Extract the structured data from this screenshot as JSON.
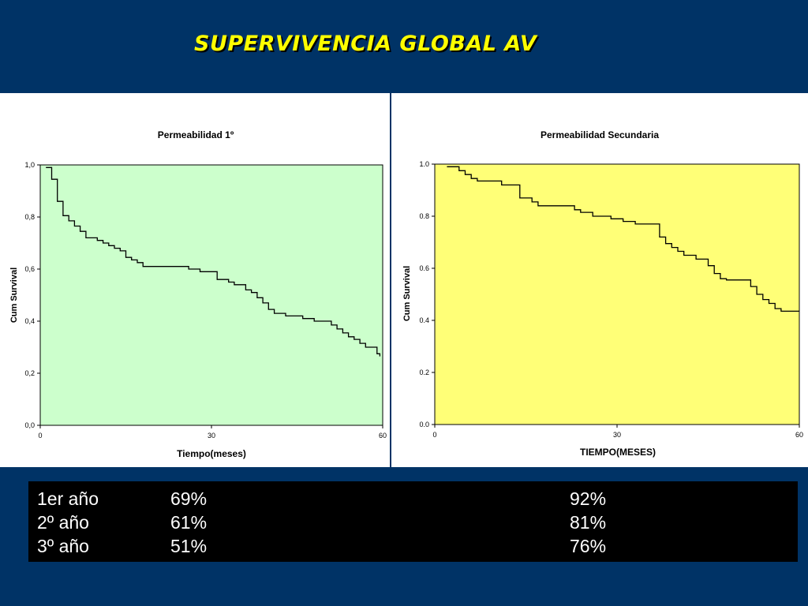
{
  "slide": {
    "title": "SUPERVIVENCIA GLOBAL AV",
    "background": "#003366",
    "title_color": "#FFFF00"
  },
  "chart_data": [
    {
      "type": "line",
      "step": true,
      "title": "Permeabilidad 1º",
      "xlabel": "Tiempo(meses)",
      "ylabel": "Cum Survival",
      "xlim": [
        0,
        60
      ],
      "ylim": [
        0,
        1
      ],
      "x_ticks": [
        "0",
        "30",
        "60"
      ],
      "y_ticks": [
        "0,0",
        "0,2",
        "0,4",
        "0,6",
        "0,8",
        "1,0"
      ],
      "plot_background": "#CCFFCC",
      "grid": false,
      "series": [
        {
          "x": [
            1,
            2,
            3,
            4,
            5,
            6,
            7,
            8,
            10,
            11,
            12,
            13,
            14,
            15,
            16,
            17,
            18,
            26,
            28,
            31,
            33,
            34,
            36,
            37,
            38,
            39,
            40,
            41,
            43,
            46,
            48,
            51,
            52,
            53,
            54,
            55,
            56,
            57,
            59
          ],
          "y": [
            0.99,
            0.945,
            0.86,
            0.805,
            0.785,
            0.765,
            0.745,
            0.72,
            0.71,
            0.7,
            0.69,
            0.68,
            0.67,
            0.645,
            0.635,
            0.625,
            0.61,
            0.6,
            0.59,
            0.56,
            0.55,
            0.54,
            0.52,
            0.51,
            0.49,
            0.47,
            0.445,
            0.43,
            0.42,
            0.41,
            0.4,
            0.385,
            0.37,
            0.355,
            0.34,
            0.33,
            0.315,
            0.3,
            0.275
          ],
          "end_x": 59.5,
          "end_y": 0.265
        }
      ]
    },
    {
      "type": "line",
      "step": true,
      "title": "Permeabilidad Secundaria",
      "xlabel": "TIEMPO(MESES)",
      "ylabel": "Cum Survival",
      "xlim": [
        0,
        60
      ],
      "ylim": [
        0,
        1
      ],
      "x_ticks": [
        "0",
        "30",
        "60"
      ],
      "y_ticks": [
        "0.0",
        "0.2",
        "0.4",
        "0.6",
        "0.8",
        "1.0"
      ],
      "plot_background": "#FFFF77",
      "grid": false,
      "series": [
        {
          "x": [
            2,
            4,
            5,
            6,
            7,
            11,
            14,
            16,
            17,
            23,
            24,
            26,
            29,
            31,
            33,
            37,
            38,
            39,
            40,
            41,
            43,
            45,
            46,
            47,
            48,
            52,
            53,
            54,
            55,
            56,
            57
          ],
          "y": [
            0.99,
            0.975,
            0.96,
            0.945,
            0.935,
            0.92,
            0.87,
            0.855,
            0.84,
            0.825,
            0.815,
            0.8,
            0.79,
            0.78,
            0.77,
            0.72,
            0.695,
            0.68,
            0.665,
            0.65,
            0.635,
            0.61,
            0.58,
            0.56,
            0.555,
            0.53,
            0.5,
            0.48,
            0.465,
            0.445,
            0.435
          ],
          "end_x": 60,
          "end_y": 0.435
        }
      ]
    }
  ],
  "results": {
    "rows": [
      {
        "label": "1er año",
        "primaria": "69%",
        "secundaria": "92%"
      },
      {
        "label": "2º año",
        "primaria": "61%",
        "secundaria": "81%"
      },
      {
        "label": "3º año",
        "primaria": "51%",
        "secundaria": "76%"
      }
    ]
  }
}
